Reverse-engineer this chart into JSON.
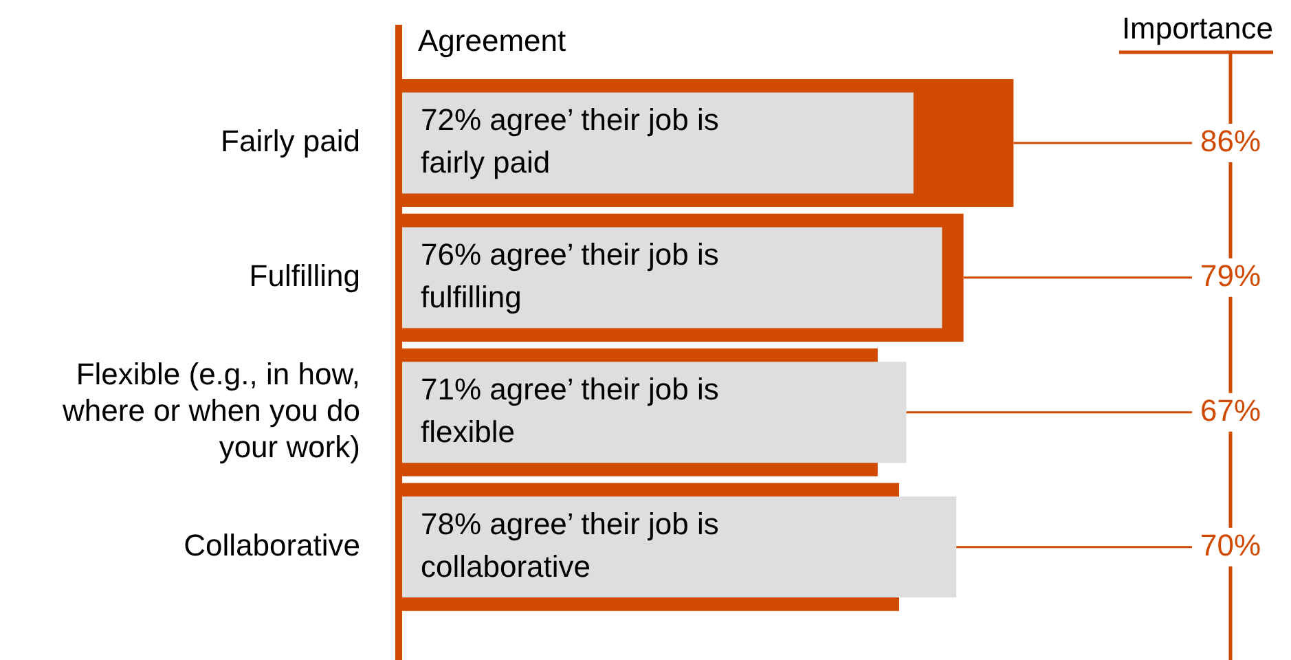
{
  "chart_data": {
    "type": "bar",
    "orientation": "horizontal",
    "categories": [
      "Fairly paid",
      "Fulfilling",
      "Flexible (e.g., in how, where or when you do your work)",
      "Collaborative"
    ],
    "series": [
      {
        "color": "#d04a02",
        "values": [
          86,
          79,
          67,
          70
        ],
        "value_labels": [
          "86%",
          "79%",
          "67%",
          "70%"
        ]
      },
      {
        "color": "#dedede",
        "values": [
          72,
          76,
          71,
          78
        ],
        "value_labels": [
          "72% agree’ their job is fairly paid",
          "76% agree’ their job is fulfilling",
          "71% agree’ their job is flexible",
          "78% agree’ their job is collaborative"
        ]
      }
    ],
    "annotations": [
      "Importance",
      "Agreement"
    ],
    "legend": false,
    "grid": false
  }
}
